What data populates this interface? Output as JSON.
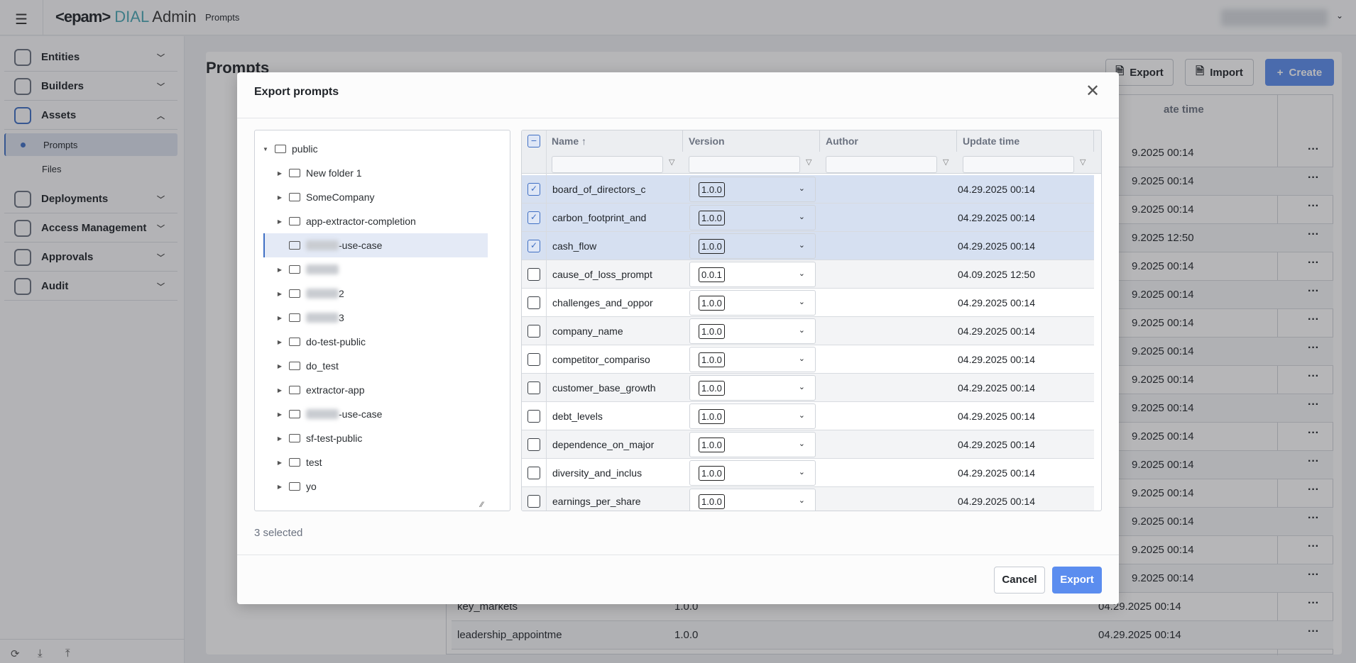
{
  "header": {
    "logo_text": "<epam>",
    "dial": "DIAL",
    "admin": "Admin",
    "breadcrumb": "Prompts",
    "menu_icon": "menu-collapse-icon"
  },
  "sidebar": {
    "items": [
      {
        "label": "Entities",
        "icon": "hexagon-icon",
        "expanded": false
      },
      {
        "label": "Builders",
        "icon": "hammer-icon",
        "expanded": false
      },
      {
        "label": "Assets",
        "icon": "copy-icon",
        "expanded": true
      },
      {
        "label": "Deployments",
        "icon": "tools-icon",
        "expanded": false
      },
      {
        "label": "Access Management",
        "icon": "shield-gear-icon",
        "expanded": false
      },
      {
        "label": "Approvals",
        "icon": "handshake-icon",
        "expanded": false
      },
      {
        "label": "Audit",
        "icon": "gauge-icon",
        "expanded": false
      }
    ],
    "sub_items": [
      {
        "label": "Prompts",
        "active": true
      },
      {
        "label": "Files",
        "active": false
      }
    ]
  },
  "page": {
    "title": "Prompts",
    "export_label": "Export",
    "import_label": "Import",
    "create_label": "Create",
    "update_time_header": "ate time",
    "bg_rows": [
      {
        "date": "9.2025 00:14"
      },
      {
        "date": "9.2025 00:14"
      },
      {
        "date": "9.2025 00:14"
      },
      {
        "date": "9.2025 12:50"
      },
      {
        "date": "9.2025 00:14"
      },
      {
        "date": "9.2025 00:14"
      },
      {
        "date": "9.2025 00:14"
      },
      {
        "date": "9.2025 00:14"
      },
      {
        "date": "9.2025 00:14"
      },
      {
        "date": "9.2025 00:14"
      },
      {
        "date": "9.2025 00:14"
      },
      {
        "date": "9.2025 00:14"
      },
      {
        "date": "9.2025 00:14"
      },
      {
        "date": "9.2025 00:14"
      },
      {
        "date": "9.2025 00:14"
      },
      {
        "date": "9.2025 00:14"
      },
      {
        "name": "key_markets",
        "version": "1.0.0",
        "date": "04.29.2025 00:14"
      },
      {
        "name": "leadership_appointme",
        "version": "1.0.0",
        "date": "04.29.2025 00:14"
      }
    ]
  },
  "modal": {
    "title": "Export prompts",
    "selected_text": "3 selected",
    "cancel_label": "Cancel",
    "export_label": "Export",
    "accent": "#5b8def",
    "tree": [
      {
        "label": "public",
        "level": 0,
        "caret": "down"
      },
      {
        "label": "New folder 1",
        "level": 1,
        "caret": "right"
      },
      {
        "label": "SomeCompany",
        "level": 1,
        "caret": "right"
      },
      {
        "label": "app-extractor-completion",
        "level": 1,
        "caret": "right"
      },
      {
        "label": "-use-case",
        "level": 1,
        "blurred_prefix": true,
        "selected": true
      },
      {
        "label": "",
        "level": 1,
        "caret": "right",
        "blurred_prefix": true
      },
      {
        "label": "2",
        "level": 1,
        "caret": "right",
        "blurred_prefix": true
      },
      {
        "label": "3",
        "level": 1,
        "caret": "right",
        "blurred_prefix": true
      },
      {
        "label": "do-test-public",
        "level": 1,
        "caret": "right"
      },
      {
        "label": "do_test",
        "level": 1,
        "caret": "right"
      },
      {
        "label": "extractor-app",
        "level": 1,
        "caret": "right"
      },
      {
        "label": "-use-case",
        "level": 1,
        "caret": "right",
        "blurred_prefix": true
      },
      {
        "label": "sf-test-public",
        "level": 1,
        "caret": "right"
      },
      {
        "label": "test",
        "level": 1,
        "caret": "right"
      },
      {
        "label": "yo",
        "level": 1,
        "caret": "right"
      }
    ],
    "columns": [
      "Name ↑",
      "Version",
      "Author",
      "Update time"
    ],
    "rows": [
      {
        "name": "board_of_directors_c",
        "version": "1.0.0",
        "author": "",
        "updated": "04.29.2025 00:14",
        "checked": true
      },
      {
        "name": "carbon_footprint_and",
        "version": "1.0.0",
        "author": "",
        "updated": "04.29.2025 00:14",
        "checked": true
      },
      {
        "name": "cash_flow",
        "version": "1.0.0",
        "author": "",
        "updated": "04.29.2025 00:14",
        "checked": true
      },
      {
        "name": "cause_of_loss_prompt",
        "version": "0.0.1",
        "author": "",
        "updated": "04.09.2025 12:50",
        "checked": false
      },
      {
        "name": "challenges_and_oppor",
        "version": "1.0.0",
        "author": "",
        "updated": "04.29.2025 00:14",
        "checked": false
      },
      {
        "name": "company_name",
        "version": "1.0.0",
        "author": "",
        "updated": "04.29.2025 00:14",
        "checked": false
      },
      {
        "name": "competitor_compariso",
        "version": "1.0.0",
        "author": "",
        "updated": "04.29.2025 00:14",
        "checked": false
      },
      {
        "name": "customer_base_growth",
        "version": "1.0.0",
        "author": "",
        "updated": "04.29.2025 00:14",
        "checked": false
      },
      {
        "name": "debt_levels",
        "version": "1.0.0",
        "author": "",
        "updated": "04.29.2025 00:14",
        "checked": false
      },
      {
        "name": "dependence_on_major",
        "version": "1.0.0",
        "author": "",
        "updated": "04.29.2025 00:14",
        "checked": false
      },
      {
        "name": "diversity_and_inclus",
        "version": "1.0.0",
        "author": "",
        "updated": "04.29.2025 00:14",
        "checked": false
      },
      {
        "name": "earnings_per_share",
        "version": "1.0.0",
        "author": "",
        "updated": "04.29.2025 00:14",
        "checked": false
      }
    ]
  }
}
